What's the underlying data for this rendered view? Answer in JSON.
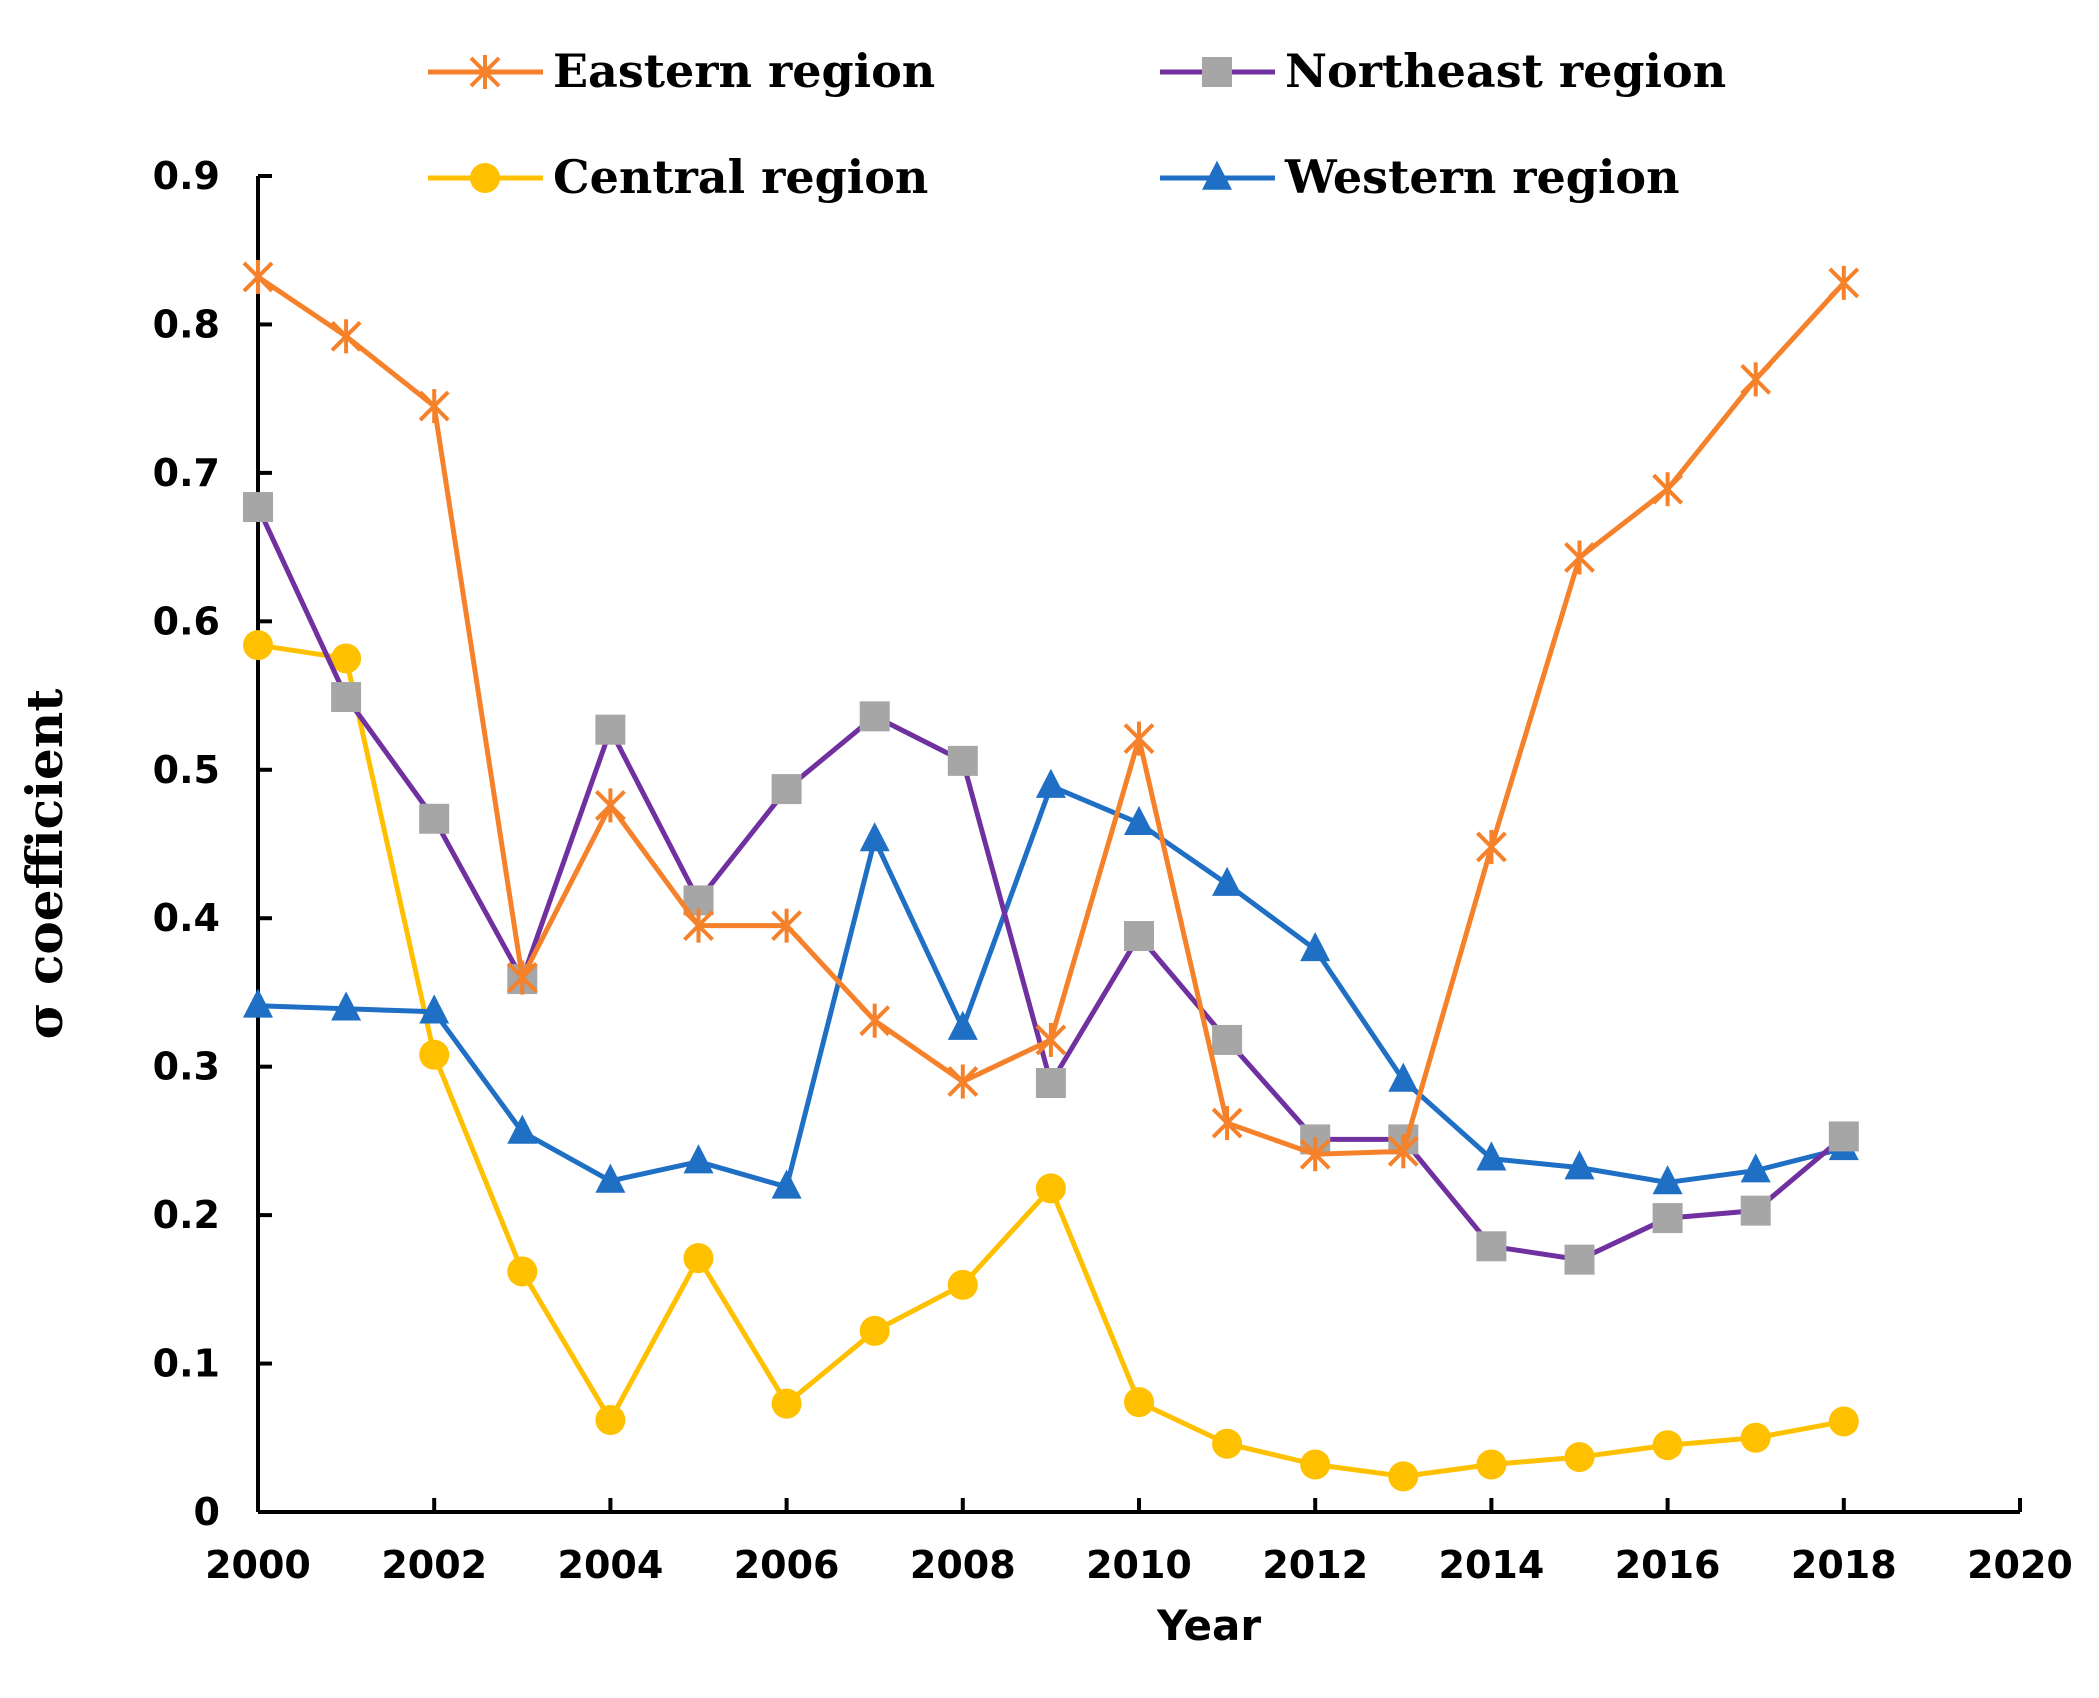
{
  "chart_data": {
    "type": "line",
    "title": "",
    "xlabel": "Year",
    "ylabel": "σ coefficient",
    "xlim": [
      2000,
      2020
    ],
    "ylim": [
      0,
      0.9
    ],
    "x_ticks": [
      "2000",
      "2002",
      "2004",
      "2006",
      "2008",
      "2010",
      "2012",
      "2014",
      "2016",
      "2018",
      "2020"
    ],
    "y_ticks": [
      "0",
      "0.1",
      "0.2",
      "0.3",
      "0.4",
      "0.5",
      "0.6",
      "0.7",
      "0.8",
      "0.9"
    ],
    "grid": false,
    "legend_position": "top",
    "x": [
      2000,
      2001,
      2002,
      2003,
      2004,
      2005,
      2006,
      2007,
      2008,
      2009,
      2010,
      2011,
      2012,
      2013,
      2014,
      2015,
      2016,
      2017,
      2018
    ],
    "series": [
      {
        "name": "Eastern region",
        "color": "#F5822A",
        "marker": "asterisk",
        "values": [
          0.832,
          0.792,
          0.745,
          0.36,
          0.476,
          0.395,
          0.395,
          0.331,
          0.29,
          0.318,
          0.521,
          0.262,
          0.241,
          0.243,
          0.448,
          0.643,
          0.689,
          0.763,
          0.828
        ]
      },
      {
        "name": "Northeast region",
        "color": "#7030A0",
        "marker_color": "#A6A6A6",
        "marker": "square",
        "values": [
          0.677,
          0.549,
          0.467,
          0.359,
          0.527,
          0.412,
          0.487,
          0.536,
          0.506,
          0.289,
          0.388,
          0.318,
          0.251,
          0.251,
          0.179,
          0.17,
          0.198,
          0.203,
          0.253
        ]
      },
      {
        "name": "Central region",
        "color": "#FFC000",
        "marker": "circle",
        "values": [
          0.584,
          0.575,
          0.308,
          0.162,
          0.062,
          0.171,
          0.073,
          0.122,
          0.153,
          0.218,
          0.074,
          0.046,
          0.032,
          0.024,
          0.032,
          0.037,
          0.045,
          0.05,
          0.061
        ]
      },
      {
        "name": "Western region",
        "color": "#1F6FC5",
        "marker": "triangle",
        "values": [
          0.341,
          0.339,
          0.337,
          0.256,
          0.223,
          0.236,
          0.219,
          0.453,
          0.326,
          0.489,
          0.464,
          0.423,
          0.379,
          0.291,
          0.238,
          0.232,
          0.222,
          0.23,
          0.245
        ]
      }
    ]
  }
}
